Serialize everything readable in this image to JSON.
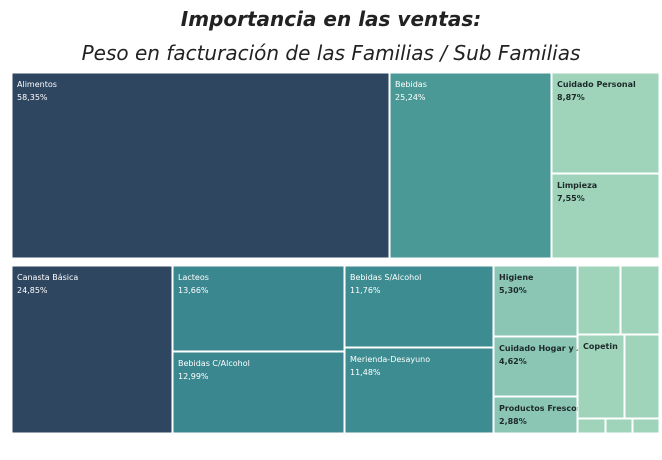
{
  "chart_data": {
    "type": "treemap",
    "title": "Importancia en las ventas:",
    "subtitle": "Peso en facturación de las Familias / Sub Familias",
    "panels": [
      {
        "categories": [
          "Alimentos",
          "Bebidas",
          "Cuidado Personal",
          "Limpieza"
        ],
        "values": [
          58.35,
          25.24,
          8.87,
          7.55
        ],
        "value_labels": [
          "58,35%",
          "25,24%",
          "8,87%",
          "7,55%"
        ],
        "colors": [
          "#2f4661",
          "#4a9996",
          "#9fd4bb",
          "#9fd4bb"
        ]
      },
      {
        "categories": [
          "Canasta Básica",
          "Lacteos",
          "Bebidas C/Alcohol",
          "Bebidas S/Alcohol",
          "Merienda-Desayuno",
          "Higiene",
          "Cuidado Hogar y Auto",
          "Productos Frescos",
          null,
          null,
          "Copetin",
          null,
          null,
          null,
          null
        ],
        "values": [
          24.85,
          13.66,
          12.99,
          11.76,
          11.48,
          5.3,
          4.62,
          2.88,
          2.6,
          2.4,
          3.5,
          2.6,
          0.35,
          0.35,
          0.35
        ],
        "value_labels": [
          "24,85%",
          "13,66%",
          "12,99%",
          "11,76%",
          "11,48%",
          "5,30%",
          "4,62%",
          "2,88%",
          null,
          null,
          null,
          null,
          null,
          null,
          null
        ],
        "colors": [
          "#2f4661",
          "#3b8790",
          "#3b8790",
          "#3d8c91",
          "#3d8c91",
          "#8bc6b5",
          "#8bc6b5",
          "#8bc6b5",
          "#9fd4bb",
          "#9fd4bb",
          "#9fd4bb",
          "#9fd4bb",
          "#9fd4bb",
          "#9fd4bb",
          "#9fd4bb"
        ]
      }
    ]
  }
}
